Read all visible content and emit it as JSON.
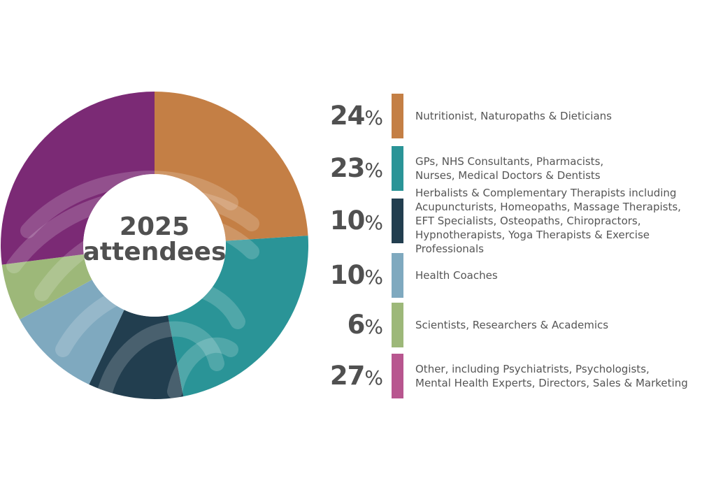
{
  "chart_data": {
    "type": "pie",
    "center_label_line1": "2025",
    "center_label_line2": "attendees",
    "categories": [
      "Nutritionist, Naturopaths & Dieticians",
      "GPs, NHS Consultants, Pharmacists,\nNurses, Medical Doctors & Dentists",
      "Herbalists & Complementary Therapists including\nAcupuncturists, Homeopaths, Massage Therapists,\nEFT Specialists, Osteopaths, Chiropractors,\nHypnotherapists, Yoga Therapists & Exercise Professionals",
      "Health Coaches",
      "Scientists, Researchers & Academics",
      "Other, including Psychiatrists, Psychologists,\nMental Health Experts, Directors, Sales & Marketing"
    ],
    "values": [
      24,
      23,
      10,
      10,
      6,
      27
    ],
    "value_labels": [
      "24",
      "23",
      "10",
      "10",
      "6",
      "27"
    ],
    "unit": "%",
    "colors": [
      "#C47F45",
      "#2A9497",
      "#223E4F",
      "#7FA9BF",
      "#9DB879",
      "#7B2A75"
    ],
    "legend_colors": [
      "#C47F45",
      "#2A9497",
      "#223E4F",
      "#7FA9BF",
      "#9DB879",
      "#B8568F"
    ],
    "legend_placement": "right"
  }
}
